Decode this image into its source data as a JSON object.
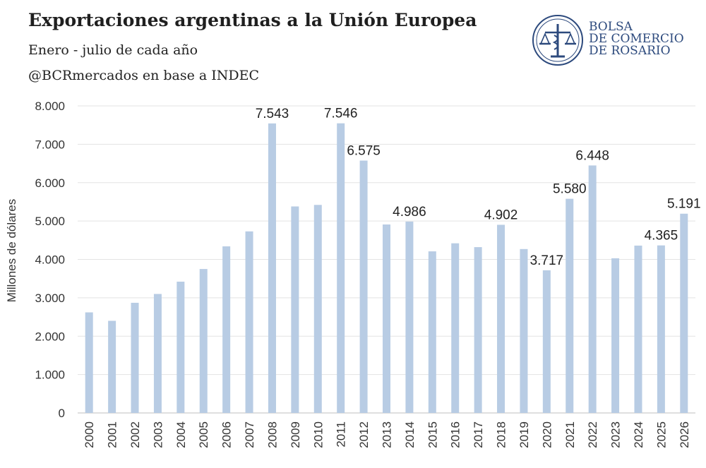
{
  "header": {
    "title": "Exportaciones argentinas a la Unión Europea",
    "subtitle": "Enero - julio de cada año",
    "source": "@BCRmercados en base a INDEC"
  },
  "logo": {
    "line1": "BOLSA",
    "line2": "DE COMERCIO",
    "line3": "DE ROSARIO",
    "color": "#2d4a7d"
  },
  "chart_data": {
    "type": "bar",
    "ylabel": "Millones de dólares",
    "ylim": [
      0,
      8000
    ],
    "yticks": [
      0,
      1000,
      2000,
      3000,
      4000,
      5000,
      6000,
      7000,
      8000
    ],
    "ytick_labels": [
      "0",
      "1.000",
      "2.000",
      "3.000",
      "4.000",
      "5.000",
      "6.000",
      "7.000",
      "8.000"
    ],
    "grid": true,
    "bar_color": "#b8cce4",
    "categories": [
      "2000",
      "2001",
      "2002",
      "2003",
      "2004",
      "2005",
      "2006",
      "2007",
      "2008",
      "2009",
      "2010",
      "2011",
      "2012",
      "2013",
      "2014",
      "2015",
      "2016",
      "2017",
      "2018",
      "2019",
      "2020",
      "2021",
      "2022",
      "2023",
      "2024",
      "2025",
      "2026"
    ],
    "values": [
      2620,
      2400,
      2870,
      3100,
      3420,
      3750,
      4340,
      4730,
      7543,
      5380,
      5420,
      7546,
      6575,
      4910,
      4986,
      4210,
      4420,
      4320,
      4902,
      4270,
      3717,
      5580,
      6448,
      4030,
      4360,
      4365,
      5191
    ],
    "data_labels": [
      {
        "category": "2008",
        "text": "7.543"
      },
      {
        "category": "2011",
        "text": "7.546"
      },
      {
        "category": "2012",
        "text": "6.575"
      },
      {
        "category": "2014",
        "text": "4.986"
      },
      {
        "category": "2018",
        "text": "4.902"
      },
      {
        "category": "2020",
        "text": "3.717"
      },
      {
        "category": "2021",
        "text": "5.580"
      },
      {
        "category": "2022",
        "text": "6.448"
      },
      {
        "category": "2025",
        "text": "4.365"
      },
      {
        "category": "2026",
        "text": "5.191"
      }
    ]
  }
}
